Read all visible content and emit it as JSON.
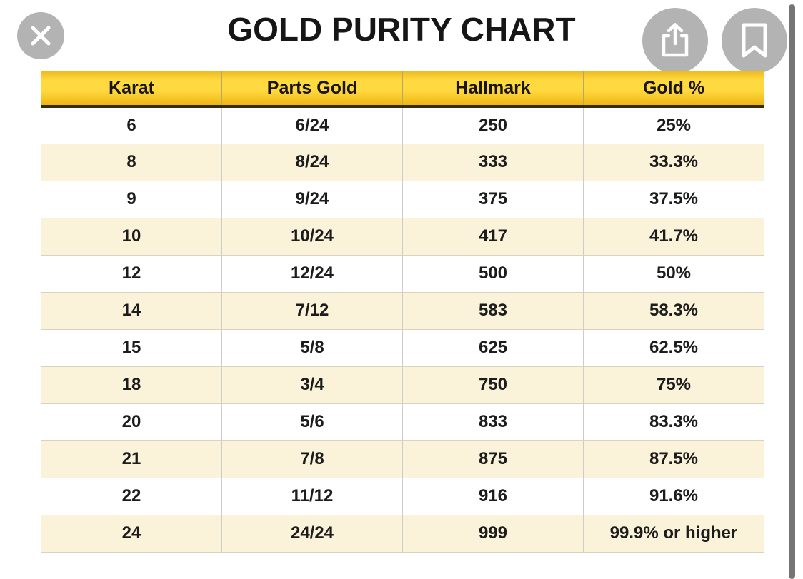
{
  "header": {
    "title": "GOLD PURITY CHART",
    "buttons": {
      "close": {
        "icon": "close-icon"
      },
      "share": {
        "icon": "share-icon"
      },
      "bookmark": {
        "icon": "bookmark-icon"
      }
    }
  },
  "table": {
    "headers": [
      "Karat",
      "Parts Gold",
      "Hallmark",
      "Gold %"
    ],
    "rows": [
      [
        "6",
        "6/24",
        "250",
        "25%"
      ],
      [
        "8",
        "8/24",
        "333",
        "33.3%"
      ],
      [
        "9",
        "9/24",
        "375",
        "37.5%"
      ],
      [
        "10",
        "10/24",
        "417",
        "41.7%"
      ],
      [
        "12",
        "12/24",
        "500",
        "50%"
      ],
      [
        "14",
        "7/12",
        "583",
        "58.3%"
      ],
      [
        "15",
        "5/8",
        "625",
        "62.5%"
      ],
      [
        "18",
        "3/4",
        "750",
        "75%"
      ],
      [
        "20",
        "5/6",
        "833",
        "83.3%"
      ],
      [
        "21",
        "7/8",
        "875",
        "87.5%"
      ],
      [
        "22",
        "11/12",
        "916",
        "91.6%"
      ],
      [
        "24",
        "24/24",
        "999",
        "99.9% or higher"
      ]
    ]
  },
  "chart_data": {
    "type": "table",
    "title": "GOLD PURITY CHART",
    "columns": [
      "Karat",
      "Parts Gold",
      "Hallmark",
      "Gold %"
    ],
    "rows": [
      [
        "6",
        "6/24",
        "250",
        "25%"
      ],
      [
        "8",
        "8/24",
        "333",
        "33.3%"
      ],
      [
        "9",
        "9/24",
        "375",
        "37.5%"
      ],
      [
        "10",
        "10/24",
        "417",
        "41.7%"
      ],
      [
        "12",
        "12/24",
        "500",
        "50%"
      ],
      [
        "14",
        "7/12",
        "583",
        "58.3%"
      ],
      [
        "15",
        "5/8",
        "625",
        "62.5%"
      ],
      [
        "18",
        "3/4",
        "750",
        "75%"
      ],
      [
        "20",
        "5/6",
        "833",
        "83.3%"
      ],
      [
        "21",
        "7/8",
        "875",
        "87.5%"
      ],
      [
        "22",
        "11/12",
        "916",
        "91.6%"
      ],
      [
        "24",
        "24/24",
        "999",
        "99.9% or higher"
      ]
    ]
  },
  "colors": {
    "header_gold_top": "#edb91c",
    "header_gold_bright": "#ffd940",
    "header_gold_bottom": "#efb512",
    "header_underline": "#332b10",
    "row_alt_cream": "#faf3d9",
    "button_gray": "#b3b3b3",
    "scrollbar_gray": "#757575",
    "title_black": "#161616"
  }
}
